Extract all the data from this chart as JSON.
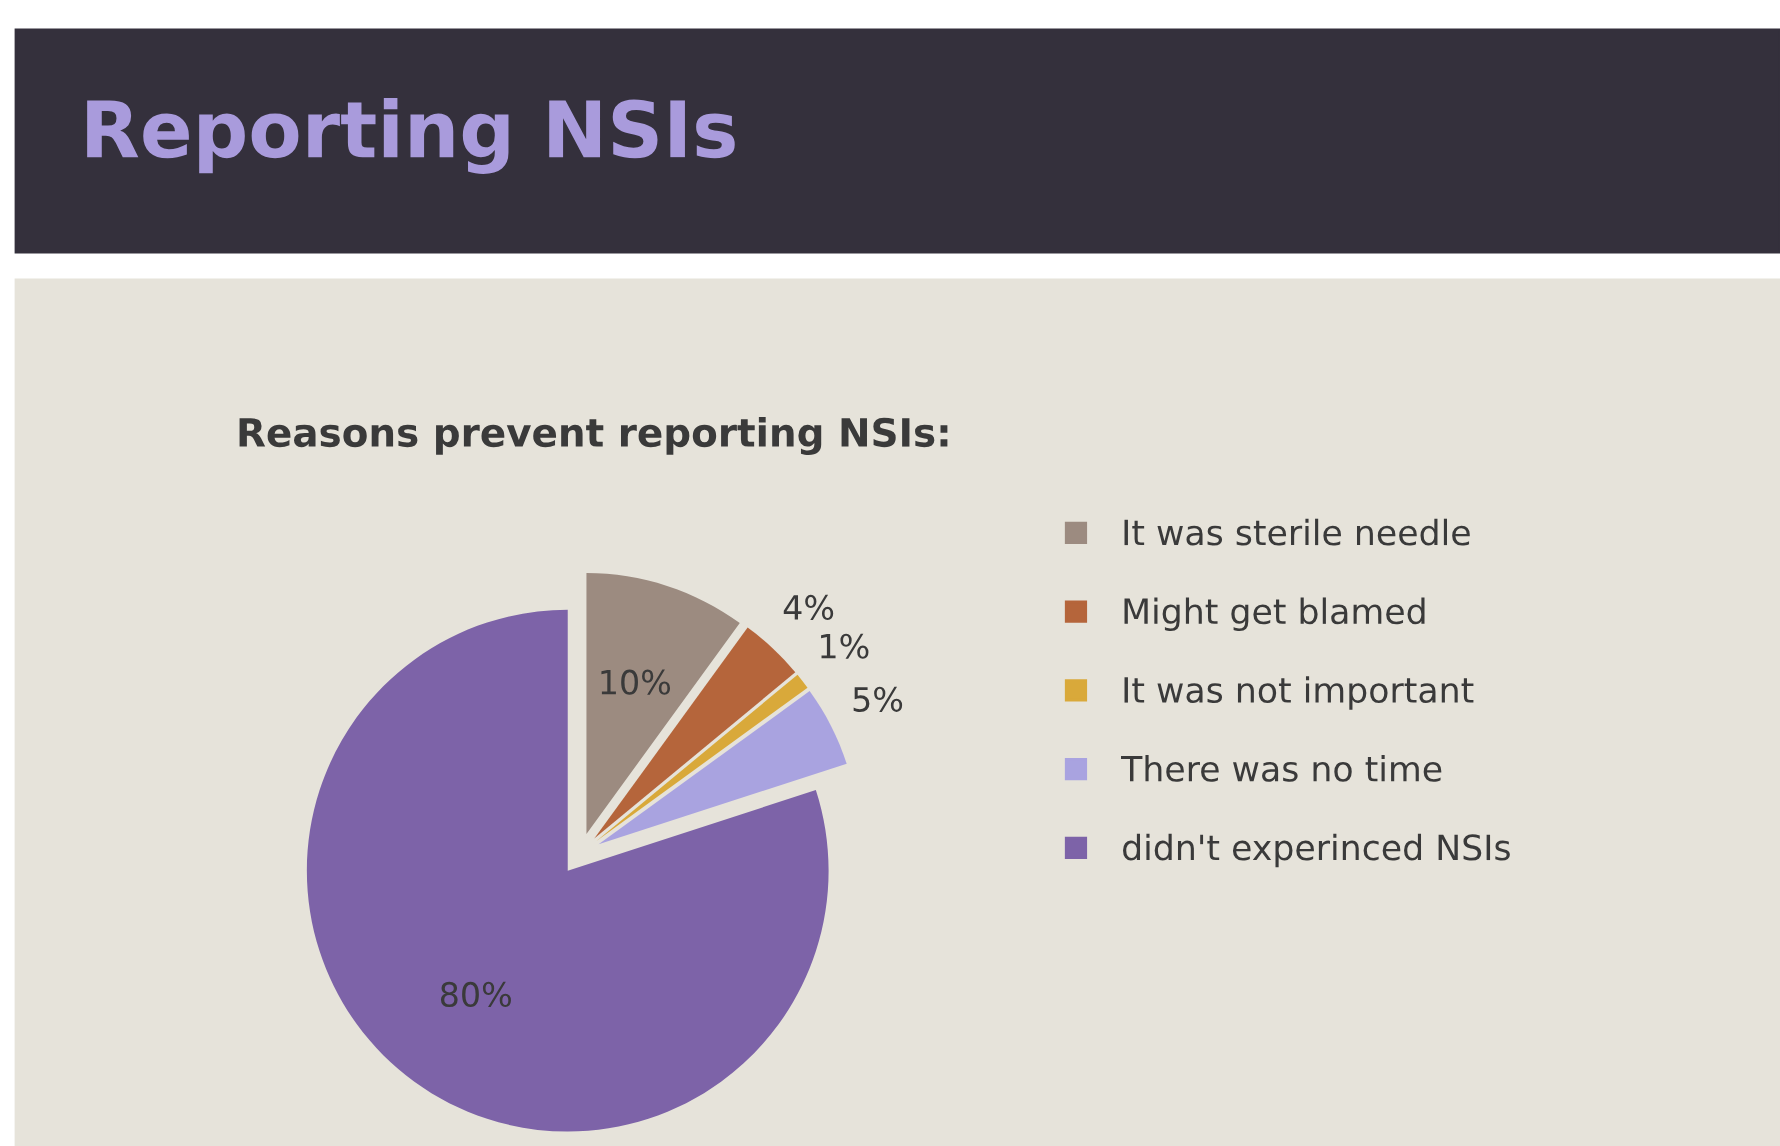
{
  "chart_data": {
    "type": "pie",
    "title": "Reporting NSIs",
    "subtitle": "Reasons prevent reporting NSIs:",
    "categories": [
      "It was sterile needle",
      "Might get blamed",
      "It was not important",
      "There was no time",
      "didn't experinced NSIs"
    ],
    "values": [
      10,
      4,
      1,
      5,
      80
    ],
    "colors": [
      "#9c8b80",
      "#b5653b",
      "#d9a93a",
      "#a9a3e0",
      "#7d63a8"
    ],
    "value_labels": [
      "10%",
      "4%",
      "1%",
      "5%",
      "80%"
    ],
    "legend": "right"
  }
}
